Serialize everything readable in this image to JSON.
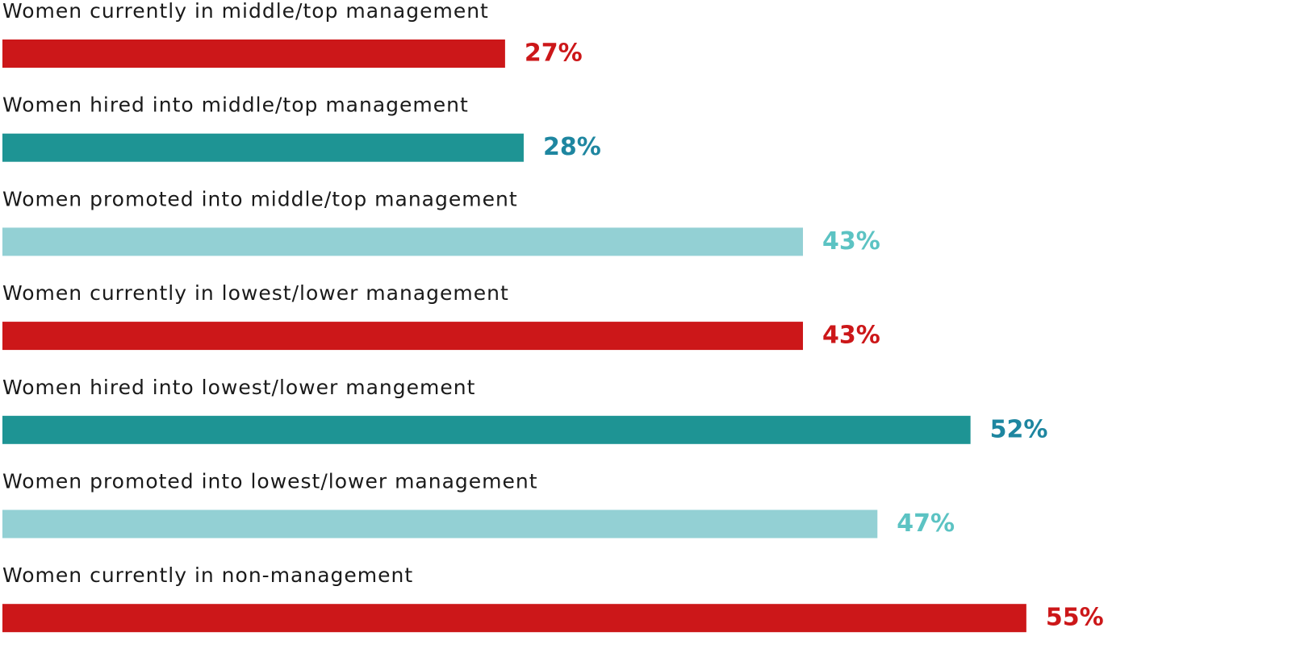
{
  "chart_data": {
    "type": "bar",
    "orientation": "horizontal",
    "categories": [
      "Women currently in middle/top management",
      "Women hired into middle/top management",
      "Women promoted into middle/top management",
      "Women currently in lowest/lower management",
      "Women hired into lowest/lower mangement",
      "Women promoted into lowest/lower management",
      "Women currently in non-management"
    ],
    "values": [
      27,
      28,
      43,
      43,
      52,
      47,
      55
    ],
    "value_labels": [
      "27%",
      "28%",
      "43%",
      "43%",
      "52%",
      "47%",
      "55%"
    ],
    "colors": [
      "#cc1719",
      "#1e9494",
      "#93d0d4",
      "#cc1719",
      "#1e9494",
      "#93d0d4",
      "#cc1719"
    ],
    "label_colors": [
      "#cc1719",
      "#1e86a0",
      "#5cc3c3",
      "#cc1719",
      "#1e86a0",
      "#5cc3c3",
      "#cc1719"
    ]
  }
}
